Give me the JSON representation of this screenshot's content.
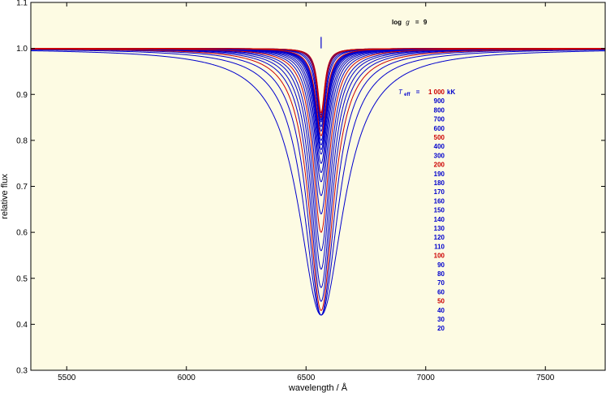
{
  "chart_data": {
    "type": "line",
    "title": "",
    "xlabel": "wavelength / Å",
    "ylabel": "relative flux",
    "xlim": [
      5350,
      7750
    ],
    "ylim": [
      0.3,
      1.1
    ],
    "x_ticks": [
      5500,
      6000,
      6500,
      7000,
      7500
    ],
    "y_ticks": [
      0.3,
      0.4,
      0.5,
      0.6,
      0.7,
      0.8,
      0.9,
      1.0,
      1.1
    ],
    "grid": false,
    "line_center": 6563,
    "annotation": {
      "prefix": "log",
      "symbol": "g",
      "equals": "=",
      "value": "9"
    },
    "legend": {
      "symbol": "T",
      "subscript": "eff",
      "equals": "=",
      "unit": "kK",
      "placement": "right"
    },
    "series": [
      {
        "name": "1 000",
        "color": "#cc0000",
        "min_flux": 0.86,
        "wing_width_A": 18
      },
      {
        "name": "900",
        "color": "#0000cc",
        "min_flux": 0.855,
        "wing_width_A": 18
      },
      {
        "name": "800",
        "color": "#0000cc",
        "min_flux": 0.85,
        "wing_width_A": 18
      },
      {
        "name": "700",
        "color": "#0000cc",
        "min_flux": 0.845,
        "wing_width_A": 19
      },
      {
        "name": "600",
        "color": "#0000cc",
        "min_flux": 0.84,
        "wing_width_A": 20
      },
      {
        "name": "500",
        "color": "#cc0000",
        "min_flux": 0.85,
        "wing_width_A": 20
      },
      {
        "name": "400",
        "color": "#0000cc",
        "min_flux": 0.83,
        "wing_width_A": 22
      },
      {
        "name": "300",
        "color": "#0000cc",
        "min_flux": 0.82,
        "wing_width_A": 24
      },
      {
        "name": "200",
        "color": "#cc0000",
        "min_flux": 0.81,
        "wing_width_A": 27
      },
      {
        "name": "190",
        "color": "#0000cc",
        "min_flux": 0.8,
        "wing_width_A": 28
      },
      {
        "name": "180",
        "color": "#0000cc",
        "min_flux": 0.79,
        "wing_width_A": 29
      },
      {
        "name": "170",
        "color": "#0000cc",
        "min_flux": 0.78,
        "wing_width_A": 30
      },
      {
        "name": "160",
        "color": "#0000cc",
        "min_flux": 0.77,
        "wing_width_A": 31
      },
      {
        "name": "150",
        "color": "#0000cc",
        "min_flux": 0.75,
        "wing_width_A": 32
      },
      {
        "name": "140",
        "color": "#0000cc",
        "min_flux": 0.73,
        "wing_width_A": 34
      },
      {
        "name": "130",
        "color": "#0000cc",
        "min_flux": 0.71,
        "wing_width_A": 36
      },
      {
        "name": "120",
        "color": "#0000cc",
        "min_flux": 0.68,
        "wing_width_A": 38
      },
      {
        "name": "110",
        "color": "#0000cc",
        "min_flux": 0.64,
        "wing_width_A": 40
      },
      {
        "name": "100",
        "color": "#cc0000",
        "min_flux": 0.6,
        "wing_width_A": 42
      },
      {
        "name": "90",
        "color": "#0000cc",
        "min_flux": 0.56,
        "wing_width_A": 45
      },
      {
        "name": "80",
        "color": "#0000cc",
        "min_flux": 0.52,
        "wing_width_A": 48
      },
      {
        "name": "70",
        "color": "#0000cc",
        "min_flux": 0.48,
        "wing_width_A": 52
      },
      {
        "name": "60",
        "color": "#0000cc",
        "min_flux": 0.45,
        "wing_width_A": 57
      },
      {
        "name": "50",
        "color": "#cc0000",
        "min_flux": 0.43,
        "wing_width_A": 63
      },
      {
        "name": "40",
        "color": "#0000cc",
        "min_flux": 0.42,
        "wing_width_A": 72
      },
      {
        "name": "30",
        "color": "#0000cc",
        "min_flux": 0.42,
        "wing_width_A": 88
      },
      {
        "name": "20",
        "color": "#0000cc",
        "min_flux": 0.42,
        "wing_width_A": 115
      }
    ]
  }
}
